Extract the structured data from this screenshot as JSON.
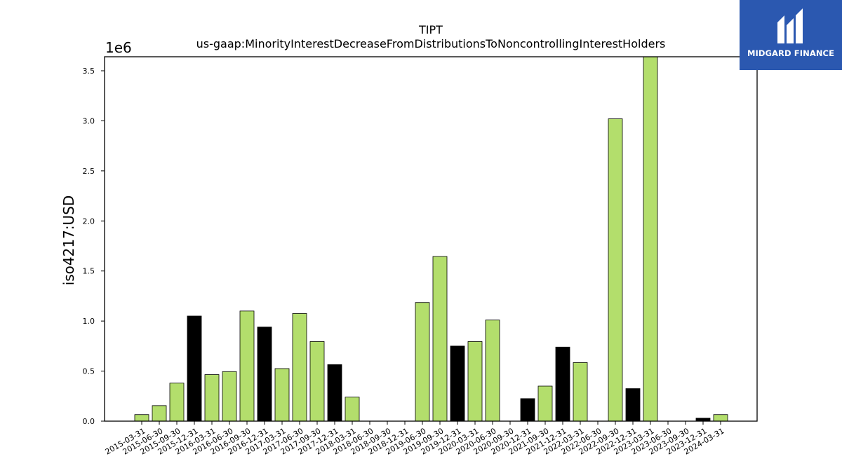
{
  "logo": {
    "text": "MIDGARD FINANCE",
    "icon": "midgard-finance-logo-icon",
    "background": "#2b58b0"
  },
  "chart_data": {
    "type": "bar",
    "title": "TIPT",
    "subtitle": "us-gaap:MinorityInterestDecreaseFromDistributionsToNoncontrollingInterestHolders",
    "xlabel": "",
    "ylabel": "iso4217:USD",
    "y_offset_label": "1e6",
    "ylim": [
      0,
      3640000
    ],
    "yticks": [
      0,
      500000,
      1000000,
      1500000,
      2000000,
      2500000,
      3000000,
      3500000
    ],
    "ytick_labels": [
      "0.0",
      "0.5",
      "1.0",
      "1.5",
      "2.0",
      "2.5",
      "3.0",
      "3.5"
    ],
    "grid": false,
    "colors": {
      "green": "#b3de6c",
      "black": "#000000",
      "edge": "#000000"
    },
    "categories": [
      "2015-03-31",
      "2015-06-30",
      "2015-09-30",
      "2015-12-31",
      "2016-03-31",
      "2016-06-30",
      "2016-09-30",
      "2016-12-31",
      "2017-03-31",
      "2017-06-30",
      "2017-09-30",
      "2017-12-31",
      "2018-03-31",
      "2018-06-30",
      "2018-09-30",
      "2018-12-31",
      "2019-06-30",
      "2019-09-30",
      "2019-12-31",
      "2020-03-31",
      "2020-06-30",
      "2020-09-30",
      "2020-12-31",
      "2021-09-30",
      "2021-12-31",
      "2022-03-31",
      "2022-06-30",
      "2022-09-30",
      "2022-12-31",
      "2023-03-31",
      "2023-06-30",
      "2023-09-30",
      "2023-12-31",
      "2024-03-31"
    ],
    "values": [
      65000,
      155000,
      380000,
      1050000,
      465000,
      495000,
      1100000,
      940000,
      525000,
      1075000,
      795000,
      565000,
      240000,
      0,
      0,
      0,
      1185000,
      1645000,
      750000,
      795000,
      1010000,
      0,
      225000,
      350000,
      740000,
      585000,
      0,
      3020000,
      325000,
      3640000,
      0,
      0,
      30000,
      65000
    ],
    "bar_colors": [
      "green",
      "green",
      "green",
      "black",
      "green",
      "green",
      "green",
      "black",
      "green",
      "green",
      "green",
      "black",
      "green",
      "green",
      "green",
      "green",
      "green",
      "green",
      "black",
      "green",
      "green",
      "green",
      "black",
      "green",
      "black",
      "green",
      "green",
      "green",
      "black",
      "green",
      "green",
      "green",
      "black",
      "green"
    ]
  }
}
